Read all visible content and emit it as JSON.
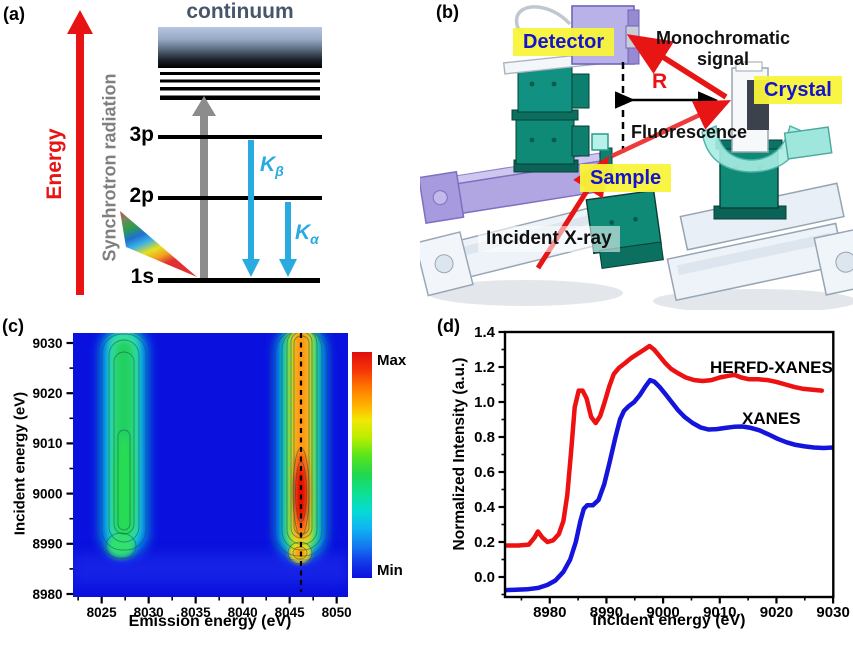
{
  "colors": {
    "accent_red": "#e81414",
    "xanes_blue": "#1414dd",
    "cyan_arrow": "#29abe2",
    "gray_arrow": "#8c8c8c",
    "continuum_text": "#47566b",
    "highlight_yellow": "#f7f33a",
    "label_blue": "#1414cc",
    "stage_teal": "#0f8a77",
    "stage_lavender": "#b2a6e2",
    "heatmap_min_blue": "#0a10dd"
  },
  "panel_a": {
    "tag": "(a)",
    "energy_label": "Energy",
    "synchrotron_label": "Synchrotron radiation",
    "continuum_label": "continuum",
    "level_3p": "3p",
    "level_2p": "2p",
    "level_1s": "1s",
    "k_beta": {
      "base": "K",
      "sub": "β"
    },
    "k_alpha": {
      "base": "K",
      "sub": "α"
    }
  },
  "panel_b": {
    "tag": "(b)",
    "detector_label": "Detector",
    "monochromatic_label_line1": "Monochromatic",
    "monochromatic_label_line2": "signal",
    "radius_label": "R",
    "crystal_label": "Crystal",
    "fluorescence_label": "Fluorescence",
    "sample_label": "Sample",
    "incident_label": "Incident X-ray"
  },
  "panel_c": {
    "tag": "(c)",
    "ylabel": "Incident energy (eV)",
    "xlabel": "Emission energy (eV)",
    "yticks": [
      9030,
      9020,
      9010,
      9000,
      8990,
      8980
    ],
    "xticks": [
      8025,
      8030,
      8035,
      8040,
      8045,
      8050
    ],
    "colorbar_max": "Max",
    "colorbar_min": "Min"
  },
  "panel_d": {
    "tag": "(d)",
    "ylabel": "Normalized Intensity (a.u.)",
    "xlabel": "Incident energy (eV)",
    "yticks": [
      "1.4",
      "1.2",
      "1.0",
      "0.8",
      "0.6",
      "0.4",
      "0.2",
      "0.0"
    ],
    "xticks": [
      8980,
      8990,
      9000,
      9010,
      9020,
      9030
    ],
    "series1_label": "HERFD-XANES",
    "series2_label": "XANES"
  },
  "chart_data": [
    {
      "type": "heatmap",
      "panel": "c",
      "xlabel": "Emission energy (eV)",
      "ylabel": "Incident energy (eV)",
      "xlim": [
        8022,
        8051
      ],
      "ylim": [
        8979,
        9032
      ],
      "grid": false,
      "contour_lines": true,
      "colorbar": {
        "position": "right",
        "colormap": "jet",
        "max_label": "Max",
        "min_label": "Min"
      },
      "dashed_line_emission_eV": 8046.2,
      "features": [
        {
          "name": "Kβ' satellite ridge",
          "emission_center_eV": 8027.5,
          "emission_width_eV": 3.5,
          "incident_range_eV": [
            8989,
            9032
          ],
          "relative_intensity": "medium (green core, cyan halo)"
        },
        {
          "name": "Kβ1,3 main ridge",
          "emission_center_eV": 8046.2,
          "emission_width_eV": 3.0,
          "incident_range_eV": [
            8988,
            9032
          ],
          "relative_intensity": "maximum (red core at incident 8998–9006 eV)"
        },
        {
          "name": "resonance lobe",
          "emission_center_eV": 8046.0,
          "incident_center_eV": 8991,
          "relative_intensity": "high (yellow-orange)"
        }
      ]
    },
    {
      "type": "line",
      "panel": "d",
      "xlabel": "Incident energy (eV)",
      "ylabel": "Normalized Intensity (a.u.)",
      "xlim": [
        8972,
        9030
      ],
      "ylim": [
        -0.114,
        1.4
      ],
      "grid": false,
      "legend_position": "inline-right",
      "series": [
        {
          "name": "HERFD-XANES",
          "color": "#ee1111",
          "points": [
            [
              8972,
              0.18
            ],
            [
              8974.5,
              0.18
            ],
            [
              8976.3,
              0.185
            ],
            [
              8977.3,
              0.225
            ],
            [
              8977.9,
              0.26
            ],
            [
              8978.7,
              0.225
            ],
            [
              8979.6,
              0.2
            ],
            [
              8980.6,
              0.21
            ],
            [
              8981.6,
              0.245
            ],
            [
              8982.4,
              0.32
            ],
            [
              8983.1,
              0.47
            ],
            [
              8983.8,
              0.73
            ],
            [
              8984.4,
              0.97
            ],
            [
              8985.1,
              1.065
            ],
            [
              8985.8,
              1.065
            ],
            [
              8986.5,
              1.02
            ],
            [
              8987.3,
              0.915
            ],
            [
              8988.1,
              0.88
            ],
            [
              8988.9,
              0.92
            ],
            [
              8989.7,
              1.0
            ],
            [
              8990.5,
              1.09
            ],
            [
              8991.3,
              1.16
            ],
            [
              8992.2,
              1.195
            ],
            [
              8993.2,
              1.22
            ],
            [
              8994.3,
              1.25
            ],
            [
              8995.5,
              1.275
            ],
            [
              8996.7,
              1.3
            ],
            [
              8997.6,
              1.32
            ],
            [
              8998.4,
              1.3
            ],
            [
              8999.3,
              1.265
            ],
            [
              9000.3,
              1.225
            ],
            [
              9001.4,
              1.19
            ],
            [
              9002.6,
              1.165
            ],
            [
              9004,
              1.14
            ],
            [
              9005.5,
              1.125
            ],
            [
              9007,
              1.12
            ],
            [
              9008.5,
              1.125
            ],
            [
              9010,
              1.14
            ],
            [
              9011.5,
              1.15
            ],
            [
              9012.6,
              1.155
            ],
            [
              9013.8,
              1.14
            ],
            [
              9015.2,
              1.13
            ],
            [
              9016.8,
              1.13
            ],
            [
              9018.4,
              1.125
            ],
            [
              9020,
              1.115
            ],
            [
              9021.6,
              1.1
            ],
            [
              9023.2,
              1.085
            ],
            [
              9024.8,
              1.075
            ],
            [
              9026.4,
              1.07
            ],
            [
              9028,
              1.065
            ]
          ]
        },
        {
          "name": "XANES",
          "color": "#1414dd",
          "points": [
            [
              8972,
              -0.075
            ],
            [
              8974,
              -0.073
            ],
            [
              8976,
              -0.07
            ],
            [
              8978,
              -0.062
            ],
            [
              8979.6,
              -0.045
            ],
            [
              8981,
              -0.02
            ],
            [
              8982.4,
              0.03
            ],
            [
              8983.6,
              0.1
            ],
            [
              8984.6,
              0.2
            ],
            [
              8985.4,
              0.32
            ],
            [
              8986,
              0.39
            ],
            [
              8986.6,
              0.41
            ],
            [
              8987.6,
              0.41
            ],
            [
              8988.6,
              0.44
            ],
            [
              8989.6,
              0.53
            ],
            [
              8990.6,
              0.66
            ],
            [
              8991.6,
              0.8
            ],
            [
              8992.4,
              0.9
            ],
            [
              8993.1,
              0.95
            ],
            [
              8993.9,
              0.975
            ],
            [
              8994.9,
              1.0
            ],
            [
              8995.9,
              1.04
            ],
            [
              8996.9,
              1.09
            ],
            [
              8997.7,
              1.125
            ],
            [
              8998.5,
              1.115
            ],
            [
              8999.4,
              1.085
            ],
            [
              9000.4,
              1.045
            ],
            [
              9001.5,
              1.0
            ],
            [
              9002.6,
              0.955
            ],
            [
              9003.8,
              0.915
            ],
            [
              9005.2,
              0.88
            ],
            [
              9006.6,
              0.855
            ],
            [
              9008,
              0.843
            ],
            [
              9009.5,
              0.845
            ],
            [
              9011,
              0.852
            ],
            [
              9012.5,
              0.858
            ],
            [
              9014,
              0.86
            ],
            [
              9015.5,
              0.852
            ],
            [
              9017,
              0.838
            ],
            [
              9018.6,
              0.815
            ],
            [
              9020.2,
              0.79
            ],
            [
              9021.8,
              0.77
            ],
            [
              9023.4,
              0.755
            ],
            [
              9025,
              0.746
            ],
            [
              9026.6,
              0.74
            ],
            [
              9028.3,
              0.737
            ],
            [
              9030,
              0.74
            ]
          ]
        }
      ]
    }
  ]
}
